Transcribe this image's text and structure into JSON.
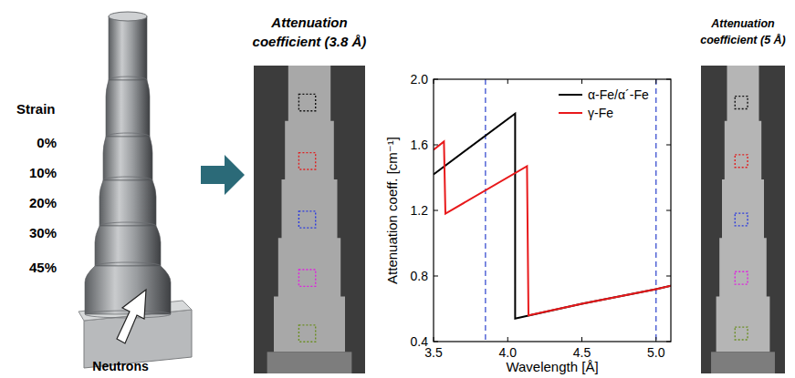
{
  "figure": {
    "strain_title": "Strain",
    "strains": [
      "0%",
      "10%",
      "20%",
      "30%",
      "45%"
    ],
    "source_label": "Neutrons",
    "images": [
      {
        "title": "Attenuation coefficient (3.8 Å)"
      },
      {
        "title": "Attenuation coefficient (5 Å)"
      }
    ]
  },
  "chart_data": {
    "type": "line",
    "x_label": "Wavelength [Å]",
    "y_label": "Attenuation coeff. [cm⁻¹]",
    "xlim": [
      3.5,
      5.1
    ],
    "ylim": [
      0.4,
      2.0
    ],
    "xticks": [
      3.5,
      {
        "value": 4,
        "label": "4.0"
      },
      4.5,
      {
        "value": 5,
        "label": "5.0"
      }
    ],
    "yticks": [
      0.4,
      0.8,
      1.2,
      1.6,
      {
        "value": 2,
        "label": "2.0"
      }
    ],
    "grid": false,
    "legend": "upper right",
    "vlines": [
      3.85,
      5.0
    ],
    "series": [
      {
        "name": "α-Fe/α´-Fe",
        "color": "#000000",
        "x": [
          3.5,
          4.05,
          4.05,
          4.5,
          5.0,
          5.1
        ],
        "values": [
          1.42,
          1.79,
          0.54,
          0.63,
          0.72,
          0.74
        ]
      },
      {
        "name": "γ-Fe",
        "color": "#e8191b",
        "x": [
          3.5,
          3.57,
          3.58,
          4.13,
          4.14,
          4.5,
          5.0,
          5.1
        ],
        "values": [
          1.57,
          1.62,
          1.18,
          1.47,
          0.56,
          0.63,
          0.72,
          0.74
        ]
      }
    ]
  }
}
